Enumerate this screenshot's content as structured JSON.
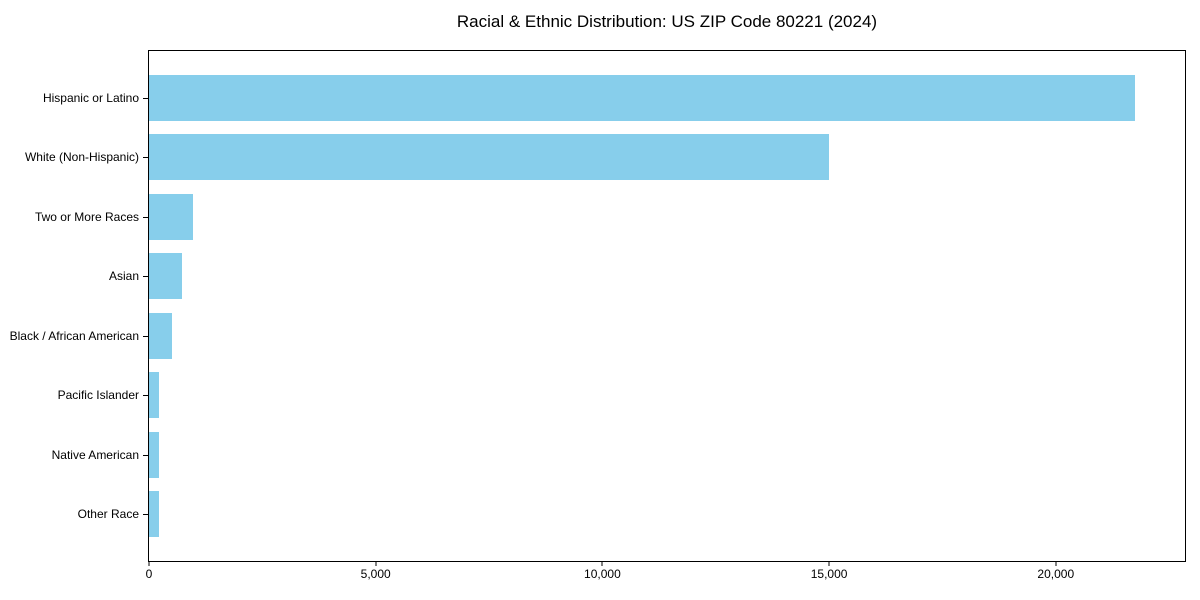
{
  "chart_data": {
    "type": "bar",
    "orientation": "horizontal",
    "title": "Racial & Ethnic Distribution: US ZIP Code 80221 (2024)",
    "categories": [
      "Hispanic or Latino",
      "White (Non-Hispanic)",
      "Two or More Races",
      "Asian",
      "Black / African American",
      "Pacific Islander",
      "Native American",
      "Other Race"
    ],
    "values": [
      21750,
      15000,
      970,
      730,
      510,
      230,
      210,
      220
    ],
    "xlabel": "",
    "ylabel": "",
    "xlim": [
      0,
      22850
    ],
    "x_ticks": [
      0,
      5000,
      10000,
      15000,
      20000
    ],
    "x_tick_labels": [
      "0",
      "5,000",
      "10,000",
      "15,000",
      "20,000"
    ],
    "bar_color": "#87CEEB",
    "grid": false,
    "legend": null,
    "background_color": "#ffffff",
    "spine_color": "#000000"
  }
}
